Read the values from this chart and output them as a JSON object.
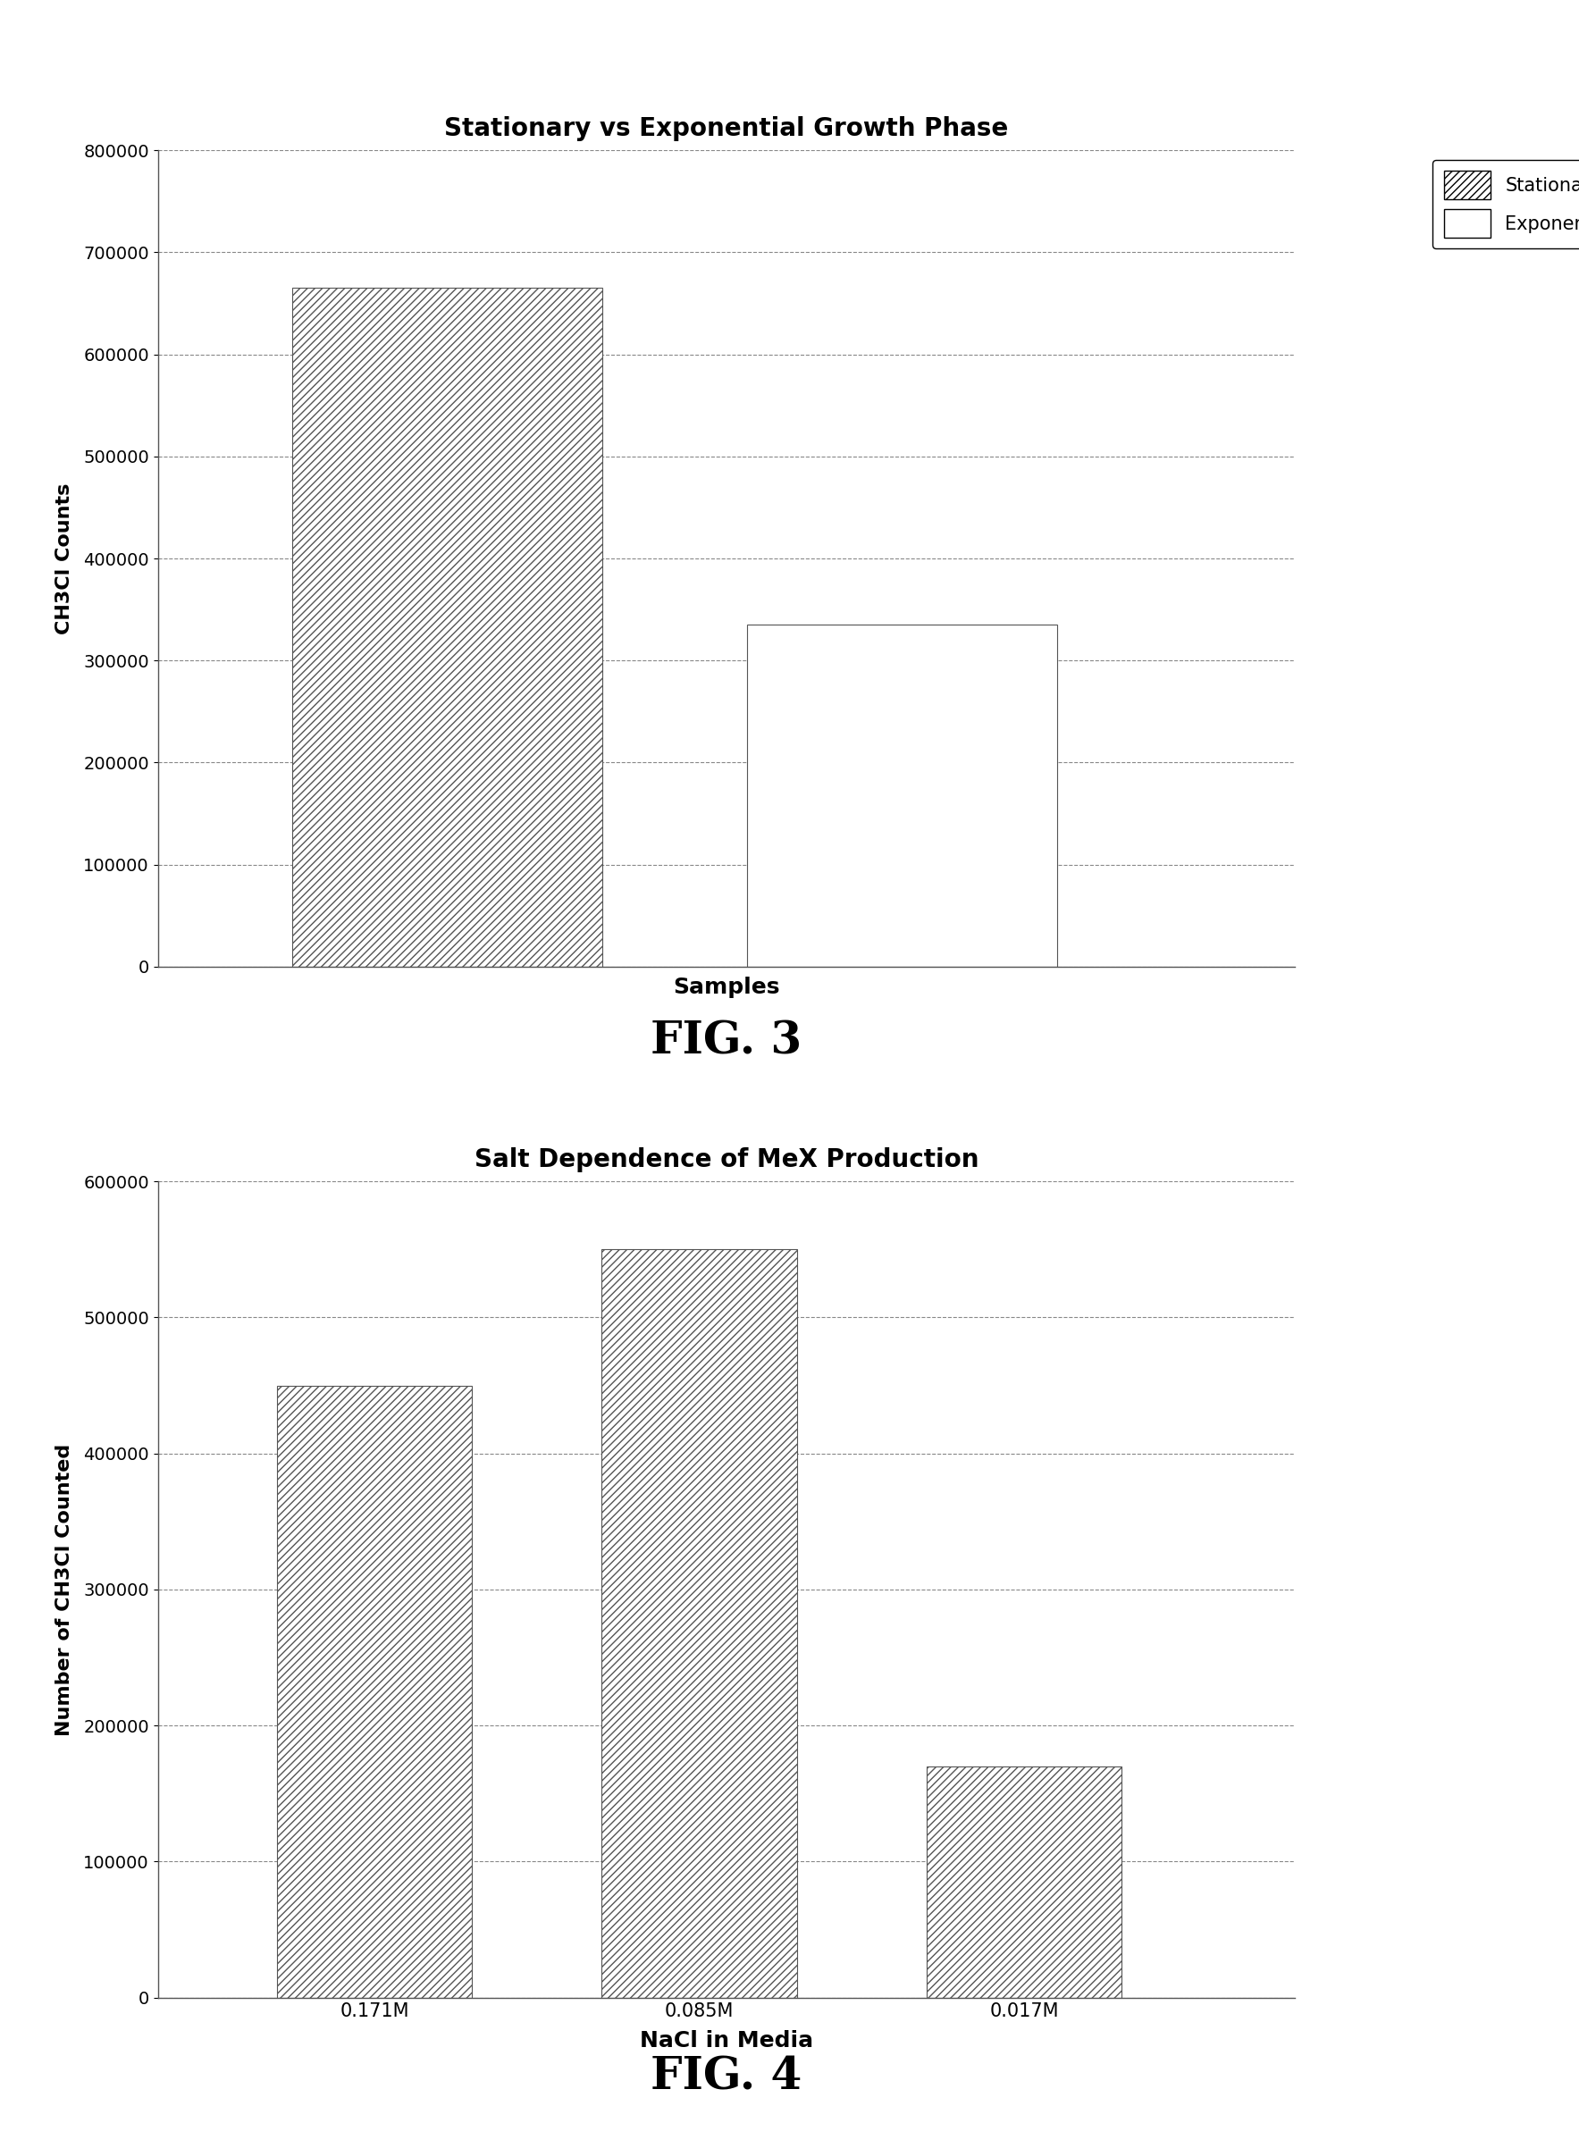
{
  "fig3": {
    "title": "Stationary vs Exponential Growth Phase",
    "xlabel": "Samples",
    "ylabel": "CH3Cl Counts",
    "ylim": [
      0,
      800000
    ],
    "yticks": [
      0,
      100000,
      200000,
      300000,
      400000,
      500000,
      600000,
      700000,
      800000
    ],
    "bars": [
      {
        "label": "Stationary",
        "value": 665000,
        "hatch": "////",
        "facecolor": "white",
        "edgecolor": "#555555"
      },
      {
        "label": "Exponential",
        "value": 335000,
        "hatch": "",
        "facecolor": "white",
        "edgecolor": "#555555"
      }
    ],
    "legend_hatches": [
      "////",
      ""
    ],
    "legend_labels": [
      "Stationary",
      "Exponential"
    ],
    "fig_label": "FIG. 3",
    "x_positions": [
      0.28,
      0.72
    ],
    "bar_width": 0.3,
    "xlim": [
      0.0,
      1.1
    ]
  },
  "fig4": {
    "title": "Salt Dependence of MeX Production",
    "xlabel": "NaCl in Media",
    "ylabel": "Number of CH3Cl Counted",
    "ylim": [
      0,
      600000
    ],
    "yticks": [
      0,
      100000,
      200000,
      300000,
      400000,
      500000,
      600000
    ],
    "categories": [
      "0.171M",
      "0.085M",
      "0.017M"
    ],
    "values": [
      450000,
      550000,
      170000
    ],
    "hatch": "////",
    "facecolor": "white",
    "edgecolor": "#555555",
    "fig_label": "FIG. 4",
    "x_positions": [
      0.2,
      0.5,
      0.8
    ],
    "bar_width": 0.18,
    "xlim": [
      0.0,
      1.05
    ]
  },
  "background_color": "#ffffff",
  "font_color": "#000000",
  "grid_color": "#888888",
  "grid_style": "--",
  "grid_linewidth": 0.8
}
